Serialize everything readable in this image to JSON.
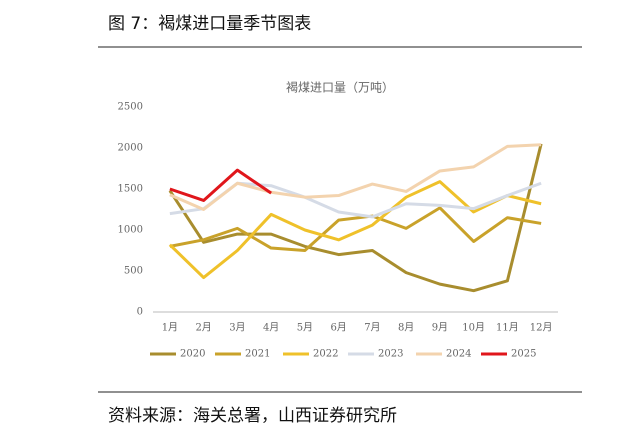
{
  "chart_data": {
    "type": "line",
    "figure_title": "图 7：褐煤进口量季节图表",
    "title": "褐煤进口量（万吨）",
    "source": "资料来源：海关总署，山西证券研究所",
    "categories": [
      "1月",
      "2月",
      "3月",
      "4月",
      "5月",
      "6月",
      "7月",
      "8月",
      "9月",
      "10月",
      "11月",
      "12月"
    ],
    "ylim": [
      0,
      2500
    ],
    "yticks": [
      0,
      500,
      1000,
      1500,
      2000,
      2500
    ],
    "grid": false,
    "legend": "bottom",
    "series": [
      {
        "name": "2020",
        "color": "#a88d2e",
        "values": [
          1480,
          850,
          950,
          950,
          800,
          700,
          750,
          480,
          340,
          260,
          380,
          2050
        ]
      },
      {
        "name": "2021",
        "color": "#c9a22a",
        "values": [
          800,
          880,
          1020,
          780,
          750,
          1120,
          1170,
          1020,
          1270,
          860,
          1150,
          1080
        ]
      },
      {
        "name": "2022",
        "color": "#efc12a",
        "values": [
          820,
          420,
          750,
          1190,
          1000,
          880,
          1060,
          1400,
          1590,
          1220,
          1420,
          1320
        ]
      },
      {
        "name": "2023",
        "color": "#d5dbe6",
        "values": [
          1200,
          1260,
          1570,
          1540,
          1400,
          1220,
          1160,
          1320,
          1300,
          1260,
          1420,
          1570
        ]
      },
      {
        "name": "2024",
        "color": "#f3d3ae",
        "values": [
          1430,
          1250,
          1570,
          1460,
          1400,
          1420,
          1560,
          1470,
          1720,
          1770,
          2020,
          2040
        ]
      },
      {
        "name": "2025",
        "color": "#e0161b",
        "values": [
          1500,
          1360,
          1730,
          1450,
          null,
          null,
          null,
          null,
          null,
          null,
          null,
          null
        ]
      }
    ]
  }
}
